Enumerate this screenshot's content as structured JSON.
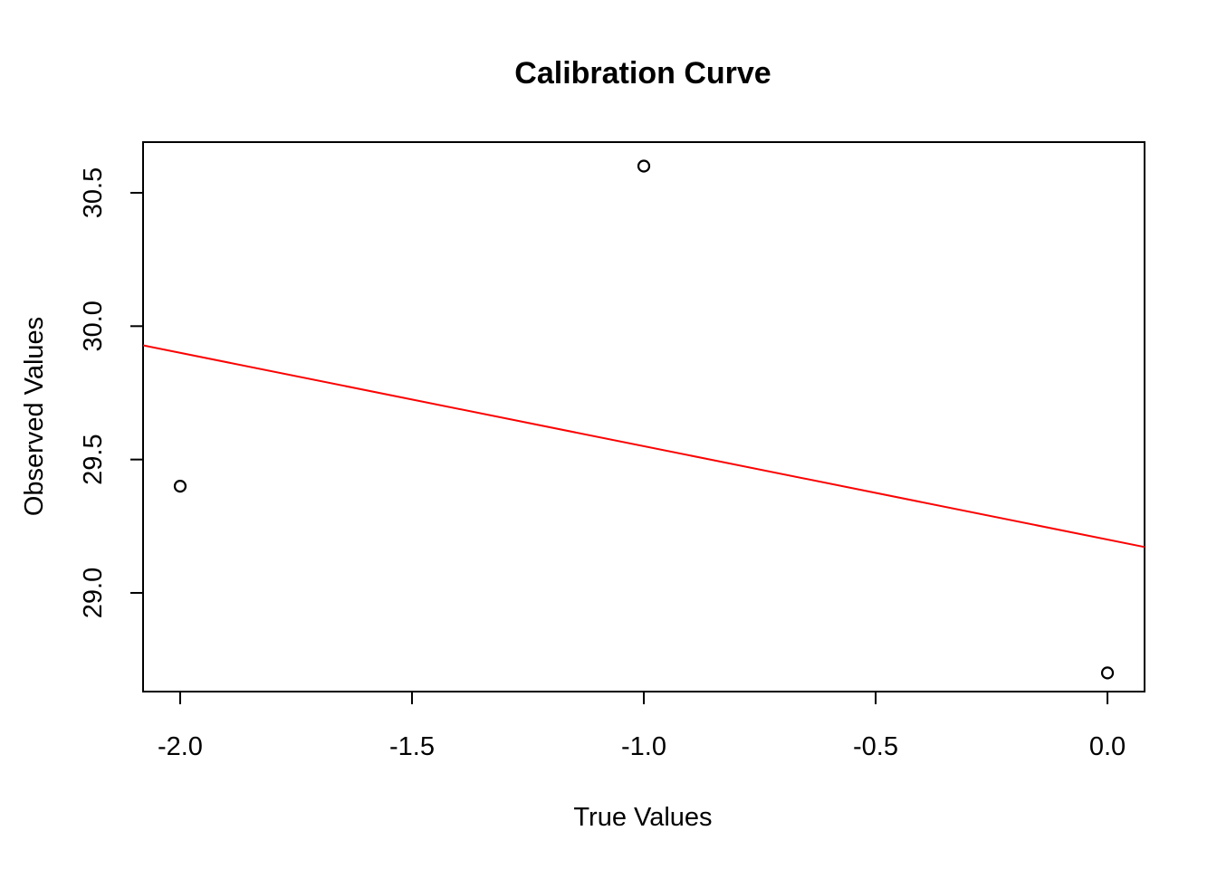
{
  "chart_data": {
    "type": "scatter",
    "title": "Calibration Curve",
    "xlabel": "True Values",
    "ylabel": "Observed Values",
    "xlim": [
      -2.08,
      0.08
    ],
    "ylim": [
      28.63,
      30.69
    ],
    "x_ticks": [
      -2.0,
      -1.5,
      -1.0,
      -0.5,
      0.0
    ],
    "x_tick_labels": [
      "-2.0",
      "-1.5",
      "-1.0",
      "-0.5",
      "0.0"
    ],
    "y_ticks": [
      29.0,
      29.5,
      30.0,
      30.5
    ],
    "y_tick_labels": [
      "29.0",
      "29.5",
      "30.0",
      "30.5"
    ],
    "series": [
      {
        "marker": "open-circle",
        "color": "#000000",
        "x": [
          -2.0,
          -1.0,
          0.0
        ],
        "y": [
          29.4,
          30.6,
          28.7
        ]
      }
    ],
    "fit_line": {
      "color": "#ff0000",
      "intercept": 29.2,
      "slope": -0.35
    },
    "grid": false,
    "legend": "none"
  }
}
